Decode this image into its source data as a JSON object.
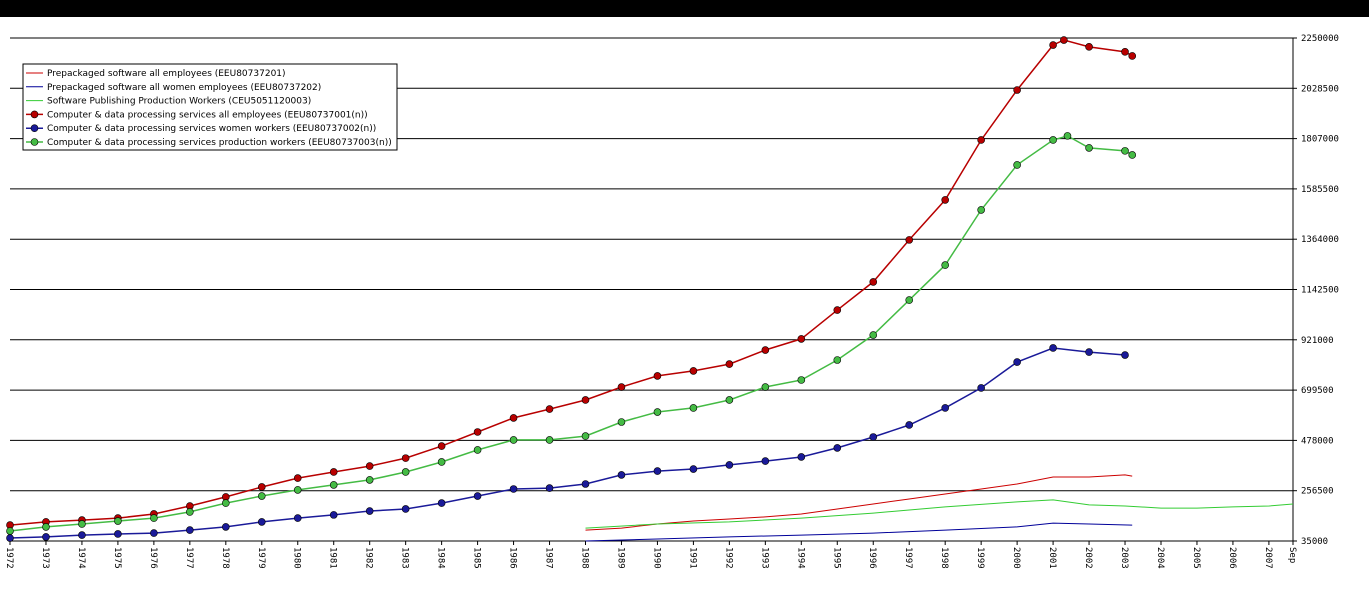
{
  "chart_data": {
    "type": "line",
    "xlim": [
      1972,
      2007.67
    ],
    "xticks": [
      1972,
      1973,
      1974,
      1975,
      1976,
      1977,
      1978,
      1979,
      1980,
      1981,
      1982,
      1983,
      1984,
      1985,
      1986,
      1987,
      1988,
      1989,
      1990,
      1991,
      1992,
      1993,
      1994,
      1995,
      1996,
      1997,
      1998,
      1999,
      2000,
      2001,
      2002,
      2003,
      2004,
      2005,
      2006,
      2007,
      {
        "value": 2007.67,
        "label": "Sep"
      }
    ],
    "ylim": [
      35000,
      2250000
    ],
    "yticks": [
      35000,
      256500,
      478000,
      699500,
      921000,
      1142500,
      1364000,
      1585500,
      1807000,
      2028500,
      2250000
    ],
    "grid": true,
    "legend": "top-left",
    "series": [
      {
        "name": "Prepackaged software all employees (EEU80737201)",
        "color": "#cc0000",
        "markers": false,
        "x": [
          1988,
          1989,
          1990,
          1991,
          1992,
          1993,
          1994,
          1995,
          1996,
          1997,
          1998,
          1999,
          2000,
          2001,
          2002,
          2003,
          2003.2
        ],
        "values": [
          83000,
          92000,
          110000,
          123000,
          132000,
          141000,
          154000,
          176000,
          198000,
          220000,
          242000,
          264000,
          286000,
          317000,
          317000,
          326000,
          321000
        ]
      },
      {
        "name": "Prepackaged software all women employees (EEU80737202)",
        "color": "#000099",
        "markers": false,
        "x": [
          1988,
          1990,
          1992,
          1994,
          1996,
          1998,
          2000,
          2001,
          2002,
          2003.2
        ],
        "values": [
          35000,
          44000,
          53000,
          61000,
          70000,
          83000,
          97000,
          114000,
          110000,
          105000
        ]
      },
      {
        "name": "Software Publishing Production Workers (CEU5051120003)",
        "color": "#33cc33",
        "markers": false,
        "x": [
          1988,
          1990,
          1992,
          1994,
          1996,
          1998,
          2000,
          2001,
          2002,
          2003,
          2004,
          2005,
          2006,
          2007,
          2007.67
        ],
        "values": [
          92000,
          110000,
          119000,
          136000,
          158000,
          185000,
          207000,
          216000,
          194000,
          189000,
          180000,
          180000,
          185000,
          189000,
          198000
        ]
      },
      {
        "name": "Computer & data processing services all employees (EEU80737001(n))",
        "color": "#b80000",
        "markers": true,
        "x": [
          1972,
          1973,
          1974,
          1975,
          1976,
          1977,
          1978,
          1979,
          1980,
          1981,
          1982,
          1983,
          1984,
          1985,
          1986,
          1987,
          1988,
          1989,
          1990,
          1991,
          1992,
          1993,
          1994,
          1995,
          1996,
          1997,
          1998,
          1999,
          2000,
          2001,
          2001.3,
          2002,
          2003,
          2003.2
        ],
        "values": [
          105000,
          119000,
          127000,
          136000,
          154000,
          189000,
          229000,
          273000,
          312000,
          339000,
          365000,
          400000,
          453000,
          515000,
          577000,
          616000,
          656000,
          713000,
          762000,
          784000,
          814000,
          876000,
          925000,
          1052000,
          1176000,
          1361000,
          1537000,
          1801000,
          2021000,
          2219000,
          2241000,
          2211000,
          2189000,
          2171000
        ]
      },
      {
        "name": "Computer & data processing services women workers (EEU80737002(n))",
        "color": "#1a1a99",
        "markers": true,
        "x": [
          1972,
          1973,
          1974,
          1975,
          1976,
          1977,
          1978,
          1979,
          1980,
          1981,
          1982,
          1983,
          1984,
          1985,
          1986,
          1987,
          1988,
          1989,
          1990,
          1991,
          1992,
          1993,
          1994,
          1995,
          1996,
          1997,
          1998,
          1999,
          2000,
          2001,
          2002,
          2003
        ],
        "values": [
          48000,
          53000,
          61000,
          66000,
          70000,
          83000,
          97000,
          119000,
          136000,
          150000,
          167000,
          176000,
          202000,
          233000,
          264000,
          268000,
          286000,
          326000,
          343000,
          352000,
          370000,
          387000,
          405000,
          445000,
          493000,
          546000,
          621000,
          709000,
          823000,
          885000,
          867000,
          854000
        ]
      },
      {
        "name": "Computer & data processing services production workers (EEU80737003(n))",
        "color": "#44bb44",
        "markers": true,
        "x": [
          1972,
          1973,
          1974,
          1975,
          1976,
          1977,
          1978,
          1979,
          1980,
          1981,
          1982,
          1983,
          1984,
          1985,
          1986,
          1987,
          1988,
          1989,
          1990,
          1991,
          1992,
          1993,
          1994,
          1995,
          1996,
          1997,
          1998,
          1999,
          2000,
          2001,
          2001.4,
          2002,
          2003,
          2003.2
        ],
        "values": [
          79000,
          97000,
          110000,
          123000,
          136000,
          163000,
          202000,
          233000,
          260000,
          282000,
          304000,
          339000,
          383000,
          436000,
          480000,
          480000,
          497000,
          559000,
          603000,
          621000,
          656000,
          713000,
          744000,
          832000,
          942000,
          1096000,
          1250000,
          1493000,
          1691000,
          1801000,
          1819000,
          1766000,
          1753000,
          1735000
        ]
      }
    ]
  }
}
